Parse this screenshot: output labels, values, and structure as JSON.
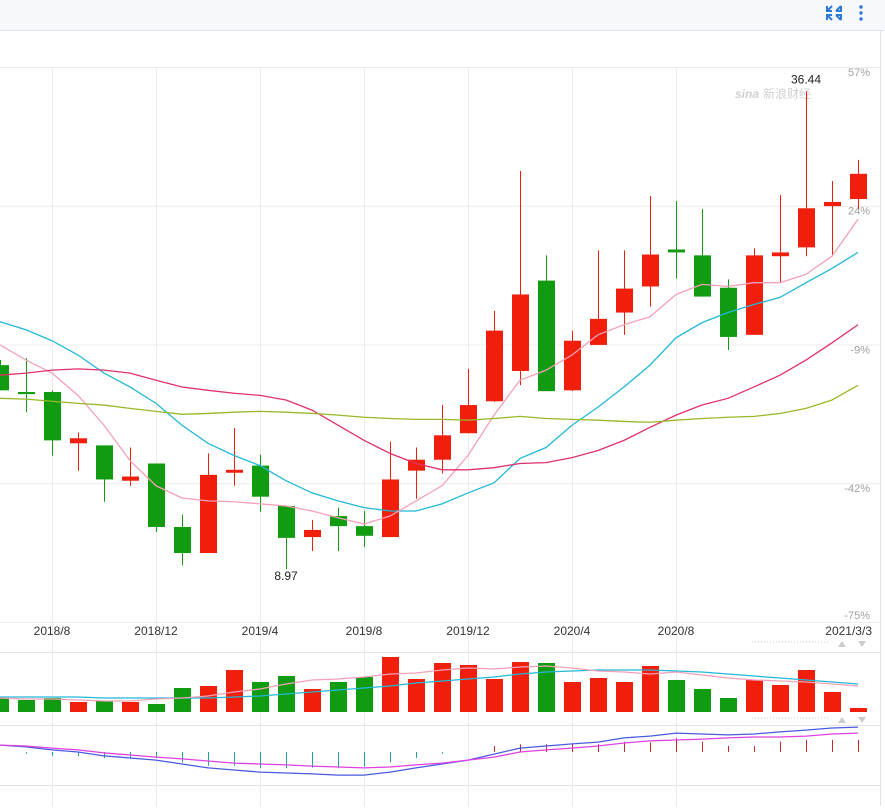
{
  "watermark": {
    "brand": "sina",
    "name": "新浪财经"
  },
  "chart_data": [
    {
      "type": "candlestick",
      "categories": [
        null,
        null,
        "2018/8",
        null,
        null,
        null,
        "2018/12",
        null,
        null,
        null,
        "2019/4",
        null,
        null,
        null,
        "2019/8",
        null,
        null,
        null,
        "2019/12",
        null,
        null,
        null,
        "2020/4",
        null,
        null,
        null,
        "2020/8",
        null,
        null,
        null,
        null,
        null,
        null,
        "2021/3/3"
      ],
      "open": [
        -13.9,
        -20.3,
        -20.3,
        -32.5,
        -33.0,
        -41.4,
        -37.3,
        -52.4,
        -58.6,
        -39.5,
        -37.8,
        -47.4,
        -54.8,
        -49.8,
        -52.2,
        -54.8,
        -39.0,
        -36.4,
        -30.1,
        -22.5,
        -15.3,
        6.2,
        -19.9,
        -9.1,
        -1.4,
        4.8,
        13.6,
        12.2,
        4.5,
        -6.7,
        12.0,
        14.1,
        23.9,
        25.6
      ],
      "high": [
        -12.7,
        -12.2,
        -19.9,
        -29.9,
        -33.0,
        -33.5,
        -37.3,
        -49.5,
        -34.9,
        -28.9,
        -35.2,
        -47.4,
        -50.7,
        -47.8,
        -48.6,
        -32.1,
        -33.5,
        -23.4,
        -14.8,
        -1.0,
        32.3,
        12.2,
        -5.7,
        13.4,
        13.4,
        26.3,
        25.1,
        23.2,
        6.5,
        13.9,
        26.6,
        51.2,
        29.9,
        34.9
      ],
      "low": [
        -19.9,
        -25.1,
        -35.4,
        -39.0,
        -46.4,
        -42.6,
        -53.6,
        -61.5,
        -58.6,
        -42.6,
        -48.8,
        -62.4,
        -58.1,
        -58.1,
        -57.2,
        -54.8,
        -45.7,
        -39.7,
        -30.1,
        -22.7,
        -18.7,
        -20.1,
        -20.1,
        -9.1,
        -6.7,
        0.0,
        6.7,
        2.4,
        -10.3,
        -6.7,
        5.7,
        12.0,
        12.0,
        23.2
      ],
      "close": [
        -19.9,
        -20.8,
        -31.8,
        -31.3,
        -41.1,
        -40.4,
        -52.4,
        -58.6,
        -40.0,
        -38.8,
        -45.2,
        -55.0,
        -53.1,
        -52.2,
        -54.5,
        -41.1,
        -36.4,
        -30.6,
        -23.4,
        -5.7,
        2.9,
        -20.1,
        -8.1,
        -2.9,
        4.3,
        12.4,
        12.9,
        2.4,
        -7.2,
        12.2,
        12.9,
        23.4,
        24.9,
        31.6
      ],
      "up_color": "#f01e0a",
      "down_color": "#109b10",
      "max_label": "36.44",
      "min_label": "8.97",
      "lines": [
        {
          "color": "#22b8d8",
          "values": [
            -3.6,
            -5.5,
            -8.1,
            -11.5,
            -15.8,
            -19.1,
            -23.0,
            -28.2,
            -32.5,
            -35.4,
            -37.8,
            -41.4,
            -44.3,
            -46.2,
            -47.8,
            -48.6,
            -48.6,
            -46.9,
            -44.3,
            -41.9,
            -36.1,
            -33.5,
            -28.2,
            -23.9,
            -19.1,
            -13.9,
            -7.4,
            -3.8,
            -1.4,
            0.5,
            2.2,
            5.7,
            9.1,
            12.9
          ]
        },
        {
          "color": "#f4a0b8",
          "values": [
            -9.1,
            -12.7,
            -15.8,
            -21.1,
            -28.2,
            -36.6,
            -42.6,
            -45.5,
            -46.2,
            -46.4,
            -46.9,
            -47.4,
            -48.6,
            -50.2,
            -51.7,
            -49.8,
            -46.2,
            -42.6,
            -35.4,
            -25.8,
            -17.5,
            -15.1,
            -11.5,
            -6.7,
            -4.3,
            -2.4,
            2.9,
            5.3,
            4.8,
            5.7,
            5.7,
            7.7,
            12.0,
            20.8
          ]
        },
        {
          "color": "#e0306a",
          "values": [
            -16.3,
            -15.8,
            -15.1,
            -14.8,
            -15.1,
            -15.8,
            -17.5,
            -19.1,
            -19.9,
            -20.6,
            -21.1,
            -22.2,
            -24.6,
            -28.2,
            -31.8,
            -34.9,
            -37.3,
            -38.8,
            -38.8,
            -38.3,
            -37.3,
            -37.1,
            -35.9,
            -34.2,
            -31.8,
            -28.7,
            -25.8,
            -23.4,
            -21.8,
            -19.1,
            -16.3,
            -12.7,
            -8.6,
            -4.3
          ]
        },
        {
          "color": "#98b828",
          "values": [
            -21.8,
            -22.0,
            -22.5,
            -23.0,
            -23.4,
            -24.2,
            -24.9,
            -25.6,
            -25.4,
            -25.1,
            -24.9,
            -25.1,
            -25.4,
            -25.8,
            -26.3,
            -26.6,
            -26.8,
            -26.8,
            -27.0,
            -26.6,
            -26.1,
            -26.6,
            -26.8,
            -27.0,
            -27.3,
            -27.5,
            -27.0,
            -26.6,
            -26.3,
            -26.1,
            -25.4,
            -24.2,
            -22.2,
            -18.7
          ]
        }
      ],
      "ylim": [
        -75,
        57
      ],
      "yticks": [
        {
          "value": 57,
          "label": "57%"
        },
        {
          "value": 24,
          "label": "24%"
        },
        {
          "value": -9,
          "label": "-9%"
        },
        {
          "value": -42,
          "label": "-42%"
        },
        {
          "value": -75,
          "label": "-75%"
        }
      ],
      "grid": true
    },
    {
      "type": "bar",
      "values": [
        14,
        12,
        14,
        10,
        11,
        10,
        8,
        24,
        26,
        42,
        30,
        36,
        23,
        30,
        35,
        55,
        33,
        49,
        47,
        33,
        50,
        49,
        30,
        34,
        30,
        46,
        32,
        23,
        14,
        32,
        27,
        42,
        20,
        4
      ],
      "ylim": [
        0,
        57
      ],
      "lines": [
        {
          "color": "#22b8d8",
          "values": [
            15,
            15,
            15,
            15,
            14,
            14,
            14,
            14,
            14,
            15,
            16,
            18,
            20,
            22,
            24,
            26,
            29,
            31,
            33,
            35,
            38,
            40,
            41,
            42,
            42,
            42,
            41,
            40,
            38,
            36,
            34,
            32,
            30,
            28
          ]
        },
        {
          "color": "#f4a0b8",
          "values": [
            14,
            13,
            13,
            12,
            11,
            11,
            13,
            14,
            16,
            20,
            23,
            28,
            32,
            33,
            35,
            38,
            39,
            42,
            44,
            43,
            45,
            46,
            44,
            41,
            40,
            38,
            40,
            37,
            34,
            32,
            31,
            30,
            28,
            26
          ]
        }
      ]
    },
    {
      "type": "macd",
      "values": [
        0,
        -0.6,
        -1.2,
        -1.4,
        -2,
        -2,
        -2,
        -3.4,
        -4.6,
        -4.6,
        -5.4,
        -5.4,
        -5.2,
        -5.4,
        -4.8,
        -3.4,
        -2,
        -0.6,
        0,
        2,
        2.6,
        2.6,
        2.8,
        2.6,
        3.4,
        3.2,
        4.6,
        3.4,
        2,
        2,
        3.4,
        4,
        4,
        4
      ],
      "up_color": "#c82828",
      "down_color": "#20a0a8",
      "ylim": [
        -11,
        8
      ],
      "lines": [
        {
          "color": "#4a5ae0",
          "values": [
            2.3,
            1.7,
            0.7,
            0,
            -1.3,
            -2.0,
            -2.7,
            -4.0,
            -5.3,
            -6.0,
            -6.7,
            -7.0,
            -7.3,
            -7.7,
            -7.7,
            -6.7,
            -5.3,
            -4.0,
            -2.7,
            -0.7,
            1.3,
            2.0,
            2.7,
            3.3,
            4.7,
            5.3,
            6.3,
            6.0,
            5.7,
            6.0,
            6.7,
            7.3,
            8.0,
            8.3
          ]
        },
        {
          "color": "#e040e0",
          "values": [
            2.3,
            2.0,
            1.3,
            0.7,
            -0.3,
            -1.0,
            -1.7,
            -2.3,
            -3.0,
            -3.7,
            -4.0,
            -4.3,
            -4.7,
            -5.0,
            -5.3,
            -5.0,
            -4.3,
            -3.7,
            -2.7,
            -1.7,
            0,
            0.7,
            1.3,
            2.0,
            3.0,
            3.7,
            4.0,
            4.3,
            4.7,
            5.0,
            5.0,
            5.3,
            6.0,
            6.3
          ]
        }
      ]
    }
  ]
}
